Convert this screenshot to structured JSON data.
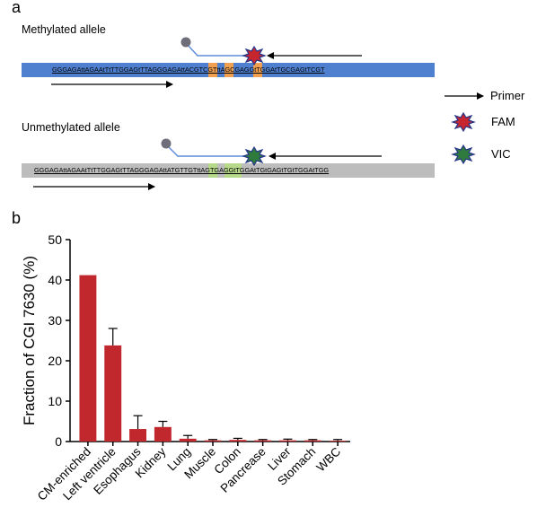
{
  "panel_a": {
    "letter": "a",
    "methylated": {
      "label": "Methylated allele",
      "sequence": "GGGAGAttAGAAtTtTTGGAGtTTAGGGAGAttACGTCGTttAGCGAGGtTGGAtTGCGAGtTCGT",
      "bar_color": "#4f7fcf",
      "highlight_color": "#f0a050"
    },
    "unmethylated": {
      "label": "Unmethylated allele",
      "sequence": "GGGAGAttAGAAtTtTTGGAGtTTAGGGAGAttATGTTGTttAGTGAGGtTGGAtTGtGAGtTGtTGGAtTGG",
      "bar_color": "#bdbdbd",
      "highlight_color": "#b6d98a"
    },
    "legend": {
      "primer": "Primer",
      "fam": "FAM",
      "vic": "VIC"
    },
    "colors": {
      "fam_star": "#c8262f",
      "vic_star": "#2f7a3d",
      "probe_line": "#5b8bd8",
      "probe_dot": "#6e6e7a"
    }
  },
  "panel_b": {
    "letter": "b"
  },
  "chart_data": {
    "type": "bar",
    "categories": [
      "CM-enriched",
      "Left ventricle",
      "Esophagus",
      "Kidney",
      "Lung",
      "Muscle",
      "Colon",
      "Pancrease",
      "Liver",
      "Stomach",
      "WBC"
    ],
    "values": [
      41.2,
      23.8,
      3.1,
      3.6,
      0.7,
      0.3,
      0.4,
      0.3,
      0.3,
      0.3,
      0.2
    ],
    "errors": [
      0,
      4.2,
      3.3,
      1.4,
      0.8,
      0.2,
      0.4,
      0.2,
      0.3,
      0.2,
      0.3
    ],
    "ylabel": "Fraction of CGI 7630 (%)",
    "xlabel": "",
    "ylim": [
      0,
      50
    ],
    "yticks": [
      0,
      10,
      20,
      30,
      40,
      50
    ],
    "bar_color": "#c0282d"
  }
}
